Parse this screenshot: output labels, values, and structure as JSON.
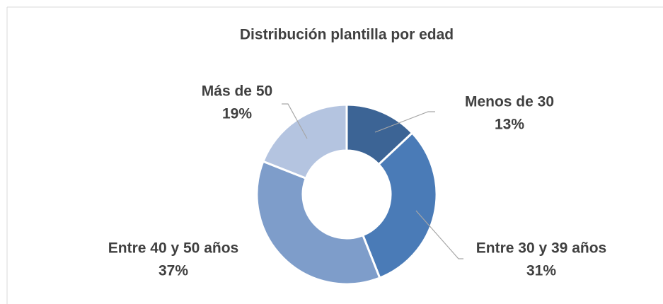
{
  "chart_data": {
    "type": "donut",
    "title": "Distribución plantilla por edad",
    "categories": [
      "Menos de 30",
      "Entre 30 y 39 años",
      "Entre 40 y 50 años",
      "Más de 50"
    ],
    "values": [
      13,
      31,
      37,
      19
    ],
    "value_labels": [
      "13%",
      "31%",
      "37%",
      "19%"
    ],
    "colors": [
      "#3c6495",
      "#4a7bb7",
      "#7e9dca",
      "#b4c4e0"
    ]
  }
}
